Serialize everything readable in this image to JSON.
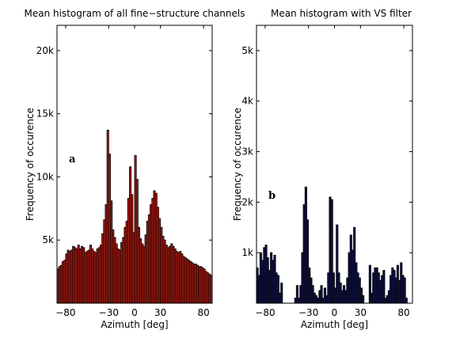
{
  "chart_data": [
    {
      "type": "bar",
      "panel_label": "a",
      "title": "Mean histogram of all fine−structure channels",
      "xlabel": "Azimuth [deg]",
      "ylabel": "Frequency of occurence",
      "xlim": [
        -90,
        90
      ],
      "ylim": [
        0,
        22000
      ],
      "xticks": [
        -80,
        -30,
        0,
        30,
        80
      ],
      "xtick_labels": [
        "−80",
        "−30",
        "0",
        "30",
        "80"
      ],
      "yticks": [
        5000,
        10000,
        15000,
        20000
      ],
      "ytick_labels": [
        "5k",
        "10k",
        "15k",
        "20k"
      ],
      "bar_color": "#c81e14",
      "edge_color": "#000000",
      "x": [
        -89,
        -87,
        -85,
        -83,
        -81,
        -79,
        -77,
        -75,
        -73,
        -71,
        -69,
        -67,
        -65,
        -63,
        -61,
        -59,
        -57,
        -55,
        -53,
        -51,
        -49,
        -47,
        -45,
        -43,
        -41,
        -39,
        -37,
        -35,
        -33,
        -31,
        -29,
        -27,
        -25,
        -23,
        -21,
        -19,
        -17,
        -15,
        -13,
        -11,
        -9,
        -7,
        -5,
        -3,
        -1,
        1,
        3,
        5,
        7,
        9,
        11,
        13,
        15,
        17,
        19,
        21,
        23,
        25,
        27,
        29,
        31,
        33,
        35,
        37,
        39,
        41,
        43,
        45,
        47,
        49,
        51,
        53,
        55,
        57,
        59,
        61,
        63,
        65,
        67,
        69,
        71,
        73,
        75,
        77,
        79,
        81,
        83,
        85,
        87,
        89
      ],
      "values": [
        2700,
        2900,
        3000,
        3300,
        3400,
        3900,
        4200,
        4100,
        4200,
        4500,
        4400,
        4300,
        4600,
        4300,
        4500,
        4400,
        4000,
        4100,
        4200,
        4600,
        4300,
        4100,
        4000,
        4300,
        4400,
        4600,
        5500,
        6600,
        7800,
        13700,
        11800,
        8100,
        5800,
        5200,
        4700,
        4300,
        4200,
        4800,
        5200,
        6000,
        6500,
        8300,
        10800,
        8600,
        5600,
        11700,
        9800,
        6000,
        5100,
        4700,
        4500,
        5400,
        6500,
        7000,
        7800,
        8300,
        8900,
        8700,
        7600,
        6700,
        6000,
        5300,
        5000,
        4600,
        4400,
        4500,
        4700,
        4500,
        4300,
        4100,
        4000,
        4100,
        3900,
        3700,
        3600,
        3500,
        3400,
        3300,
        3200,
        3100,
        3100,
        3000,
        2900,
        2900,
        2800,
        2700,
        2500,
        2400,
        2300,
        2200
      ]
    },
    {
      "type": "bar",
      "panel_label": "b",
      "title": "Mean histogram with VS filter",
      "xlabel": "Azimuth [deg]",
      "ylabel": "Frequency of occurence",
      "xlim": [
        -90,
        90
      ],
      "ylim": [
        0,
        5500
      ],
      "xticks": [
        -80,
        -30,
        0,
        30,
        80
      ],
      "xtick_labels": [
        "−80",
        "−30",
        "0",
        "30",
        "80"
      ],
      "yticks": [
        1000,
        2000,
        3000,
        4000,
        5000
      ],
      "ytick_labels": [
        "1k",
        "2k",
        "3k",
        "4k",
        "5k"
      ],
      "bar_color": "#141455",
      "edge_color": "#000000",
      "x": [
        -89,
        -87,
        -85,
        -83,
        -81,
        -79,
        -77,
        -75,
        -73,
        -71,
        -69,
        -67,
        -65,
        -63,
        -61,
        -59,
        -57,
        -55,
        -53,
        -51,
        -49,
        -47,
        -45,
        -43,
        -41,
        -39,
        -37,
        -35,
        -33,
        -31,
        -29,
        -27,
        -25,
        -23,
        -21,
        -19,
        -17,
        -15,
        -13,
        -11,
        -9,
        -7,
        -5,
        -3,
        -1,
        1,
        3,
        5,
        7,
        9,
        11,
        13,
        15,
        17,
        19,
        21,
        23,
        25,
        27,
        29,
        31,
        33,
        35,
        37,
        39,
        41,
        43,
        45,
        47,
        49,
        51,
        53,
        55,
        57,
        59,
        61,
        63,
        65,
        67,
        69,
        71,
        73,
        75,
        77,
        79,
        81,
        83,
        85,
        87,
        89
      ],
      "values": [
        700,
        550,
        1000,
        850,
        1100,
        1150,
        900,
        650,
        1000,
        850,
        950,
        600,
        550,
        200,
        400,
        0,
        0,
        0,
        0,
        0,
        0,
        0,
        100,
        350,
        100,
        350,
        1000,
        1950,
        2300,
        1650,
        700,
        500,
        350,
        200,
        150,
        100,
        250,
        350,
        100,
        300,
        150,
        600,
        2100,
        2050,
        600,
        300,
        1550,
        600,
        400,
        250,
        350,
        250,
        500,
        1000,
        1350,
        1050,
        1500,
        800,
        600,
        500,
        300,
        150,
        0,
        0,
        0,
        750,
        200,
        600,
        700,
        700,
        600,
        450,
        550,
        650,
        100,
        150,
        250,
        550,
        700,
        650,
        500,
        750,
        450,
        800,
        550,
        500,
        100,
        0,
        0,
        0
      ]
    }
  ]
}
